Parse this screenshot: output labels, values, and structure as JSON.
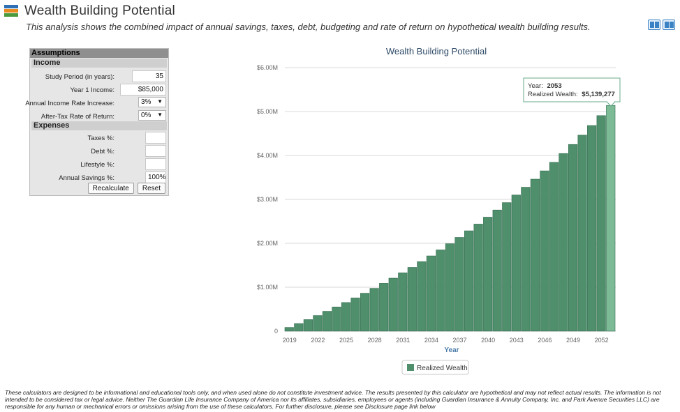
{
  "header": {
    "title": "Wealth Building Potential",
    "subtitle": "This analysis shows the combined impact of annual savings, taxes, debt, budgeting and rate of return on hypothetical wealth building results."
  },
  "assumptions": {
    "title": "Assumptions",
    "income": {
      "heading": "Income",
      "study_period_label": "Study Period (in years):",
      "study_period_value": "35",
      "year1_income_label": "Year 1 Income:",
      "year1_income_value": "$85,000",
      "income_rate_label": "Annual Income Rate Increase:",
      "income_rate_value": "3%",
      "after_tax_label": "After-Tax Rate of Return:",
      "after_tax_value": "0%"
    },
    "expenses": {
      "heading": "Expenses",
      "taxes_label": "Taxes %:",
      "taxes_value": "",
      "debt_label": "Debt %:",
      "debt_value": "",
      "lifestyle_label": "Lifestyle %:",
      "lifestyle_value": "",
      "savings_label": "Annual Savings %:",
      "savings_value": "100%"
    },
    "recalculate_label": "Recalculate",
    "reset_label": "Reset"
  },
  "chart_data": {
    "type": "bar",
    "title": "Wealth Building Potential",
    "xlabel": "Year",
    "ylabel": "",
    "ylim": [
      0,
      6000000
    ],
    "ytick_labels": [
      "0",
      "$1.00M",
      "$2.00M",
      "$3.00M",
      "$4.00M",
      "$5.00M",
      "$6.00M"
    ],
    "xtick_labels": [
      "2019",
      "2022",
      "2025",
      "2028",
      "2031",
      "2034",
      "2037",
      "2040",
      "2043",
      "2046",
      "2049",
      "2052"
    ],
    "categories": [
      2019,
      2020,
      2021,
      2022,
      2023,
      2024,
      2025,
      2026,
      2027,
      2028,
      2029,
      2030,
      2031,
      2032,
      2033,
      2034,
      2035,
      2036,
      2037,
      2038,
      2039,
      2040,
      2041,
      2042,
      2043,
      2044,
      2045,
      2046,
      2047,
      2048,
      2049,
      2050,
      2051,
      2052,
      2053
    ],
    "series": [
      {
        "name": "Realized Wealth",
        "values": [
          85000,
          172550,
          262727,
          355608,
          451276,
          549814,
          651309,
          755848,
          863523,
          974429,
          1088662,
          1206322,
          1327512,
          1452338,
          1580908,
          1713336,
          1849737,
          1990231,
          2134940,
          2283990,
          2437512,
          2595639,
          2758509,
          2926265,
          3099054,
          3277025,
          3460336,
          3649146,
          3843619,
          4043927,
          4250245,
          4462753,
          4681637,
          4907088,
          5139277
        ]
      }
    ],
    "legend": "bottom-center",
    "grid": true,
    "tooltip": {
      "year_label": "Year:",
      "year_value": "2053",
      "wealth_label": "Realized Wealth:",
      "wealth_value": "$5,139,277"
    },
    "colors": {
      "bar": "#4f8f6c",
      "bar_highlight": "#7cbb96",
      "legend_swatch": "#4f8f6c"
    }
  },
  "disclaimer": "These calculators are designed to be informational and educational tools only, and when used alone do not constitute investment advice. The results presented by this calculator are hypothetical and may not reflect actual results. The information is not intended to be considered tax or legal advice. Neither The Guardian Life Insurance Company of America nor its affiliates, subsidiaries, employees or agents (including Guardian Insurance & Annuity Company, Inc. and Park Avenue Securities LLC) are responsible for any human or mechanical errors or omissions arising from the use of these calculators. For further disclosure, please see Disclosure page link below"
}
